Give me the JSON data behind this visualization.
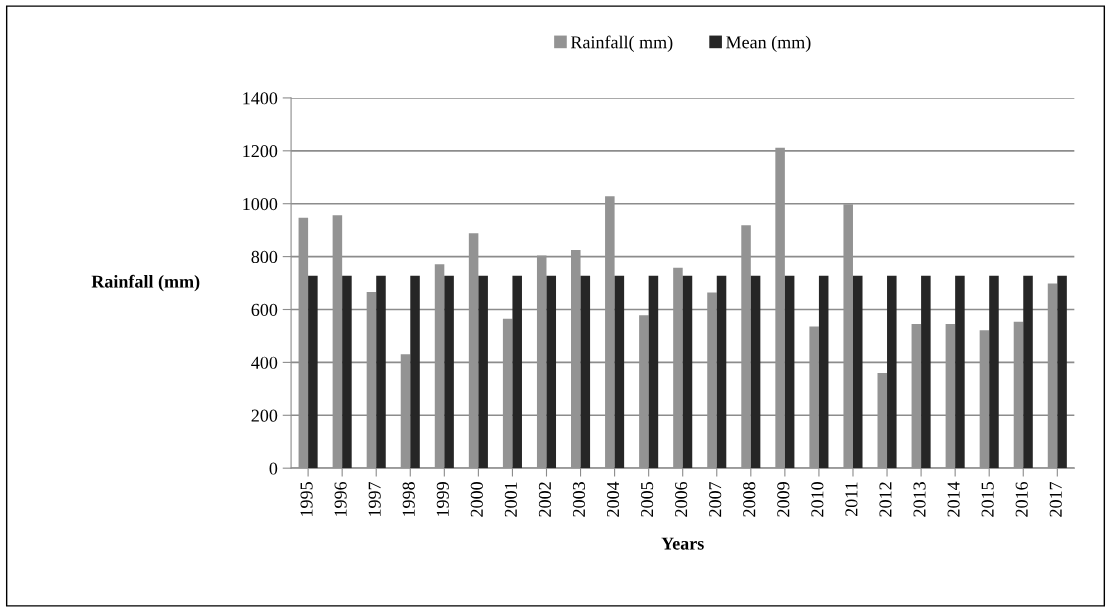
{
  "chart_data": {
    "type": "bar",
    "xlabel": "Years",
    "ylabel": "Rainfall (mm)",
    "categories": [
      "1995",
      "1996",
      "1997",
      "1998",
      "1999",
      "2000",
      "2001",
      "2002",
      "2003",
      "2004",
      "2005",
      "2006",
      "2007",
      "2008",
      "2009",
      "2010",
      "2011",
      "2012",
      "2013",
      "2014",
      "2015",
      "2016",
      "2017"
    ],
    "series": [
      {
        "name": "Rainfall( mm)",
        "color": "#939393",
        "values": [
          947,
          956,
          666,
          431,
          771,
          888,
          565,
          804,
          825,
          1028,
          578,
          758,
          664,
          919,
          1212,
          536,
          998,
          360,
          545,
          545,
          522,
          554,
          698
        ]
      },
      {
        "name": "Mean (mm)",
        "color": "#262626",
        "values": [
          728,
          728,
          728,
          728,
          728,
          728,
          728,
          728,
          728,
          728,
          728,
          728,
          728,
          728,
          728,
          728,
          728,
          728,
          728,
          728,
          728,
          728,
          728
        ]
      }
    ],
    "ylim": [
      0,
      1400
    ],
    "yticks": [
      0,
      200,
      400,
      600,
      800,
      1000,
      1200,
      1400
    ],
    "grid": "y",
    "legend": "top"
  }
}
